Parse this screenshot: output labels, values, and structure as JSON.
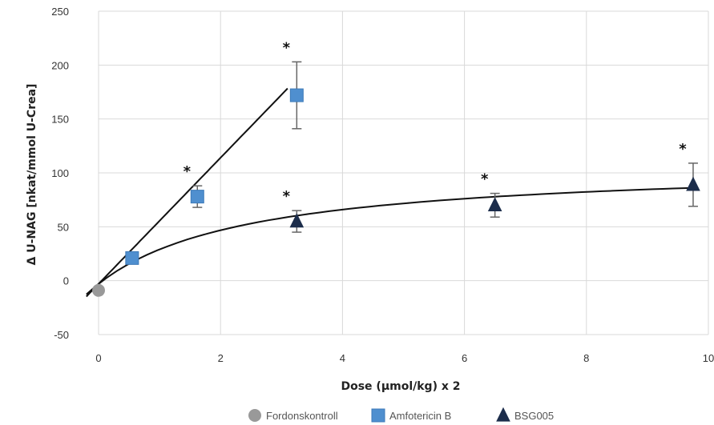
{
  "chart_data": {
    "type": "scatter",
    "xlabel": "Dose (µmol/kg) x 2",
    "ylabel": "Δ U-NAG [nkat/mmol U-Crea]",
    "xlim": [
      0,
      10
    ],
    "ylim": [
      -50,
      250
    ],
    "xticks": [
      0,
      2,
      4,
      6,
      8,
      10
    ],
    "yticks": [
      -50,
      0,
      50,
      100,
      150,
      200,
      250
    ],
    "grid": true,
    "legend_position": "bottom",
    "series": [
      {
        "name": "Fordonskontroll",
        "marker": "circle",
        "color": "#999999",
        "points": [
          {
            "x": 0,
            "y": -9,
            "err": 0,
            "sig": false
          }
        ]
      },
      {
        "name": "Amfotericin B",
        "marker": "square",
        "color": "#4f8fcf",
        "points": [
          {
            "x": 0.55,
            "y": 21,
            "err": 0,
            "sig": false
          },
          {
            "x": 1.62,
            "y": 78,
            "err": 10,
            "sig": true
          },
          {
            "x": 3.25,
            "y": 172,
            "err": 31,
            "sig": true
          }
        ]
      },
      {
        "name": "BSG005",
        "marker": "triangle",
        "color": "#1c2d4b",
        "points": [
          {
            "x": 3.25,
            "y": 55,
            "err": 10,
            "sig": true
          },
          {
            "x": 6.5,
            "y": 70,
            "err": 11,
            "sig": true
          },
          {
            "x": 9.75,
            "y": 89,
            "err": 20,
            "sig": true
          }
        ]
      }
    ],
    "fits": [
      {
        "series": "Amfotericin B",
        "kind": "linear",
        "x_from": -0.2,
        "x_to": 3.1,
        "intercept": -3,
        "slope": 58.5
      },
      {
        "series": "BSG005",
        "kind": "saturating",
        "x_from": -0.2,
        "x_to": 9.75,
        "a": 112,
        "b": 2.5,
        "offset": -3
      }
    ],
    "significance_marker": "*"
  }
}
